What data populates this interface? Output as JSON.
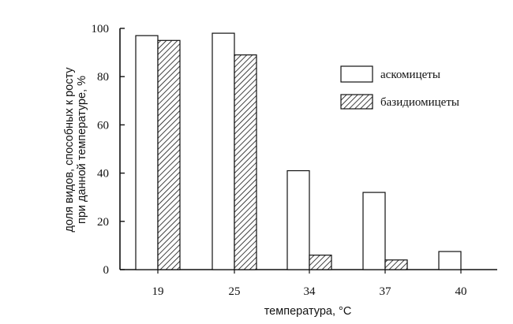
{
  "chart_data": {
    "type": "bar",
    "xlabel": "температура, °C",
    "ylabel_lines": [
      "доля видов, способных к росту",
      "при данной температуре, %"
    ],
    "categories": [
      "19",
      "25",
      "34",
      "37",
      "40"
    ],
    "ylim": [
      0,
      100
    ],
    "yticks": [
      "100",
      "80",
      "60",
      "40",
      "20",
      "0"
    ],
    "grid": false,
    "legend_position": "top-right",
    "series": [
      {
        "name": "аскомицеты",
        "fill": "open",
        "values": [
          97,
          98,
          41,
          32,
          7.5
        ]
      },
      {
        "name": "базидиомицеты",
        "fill": "hatched",
        "values": [
          95,
          89,
          6,
          4,
          0
        ]
      }
    ]
  }
}
